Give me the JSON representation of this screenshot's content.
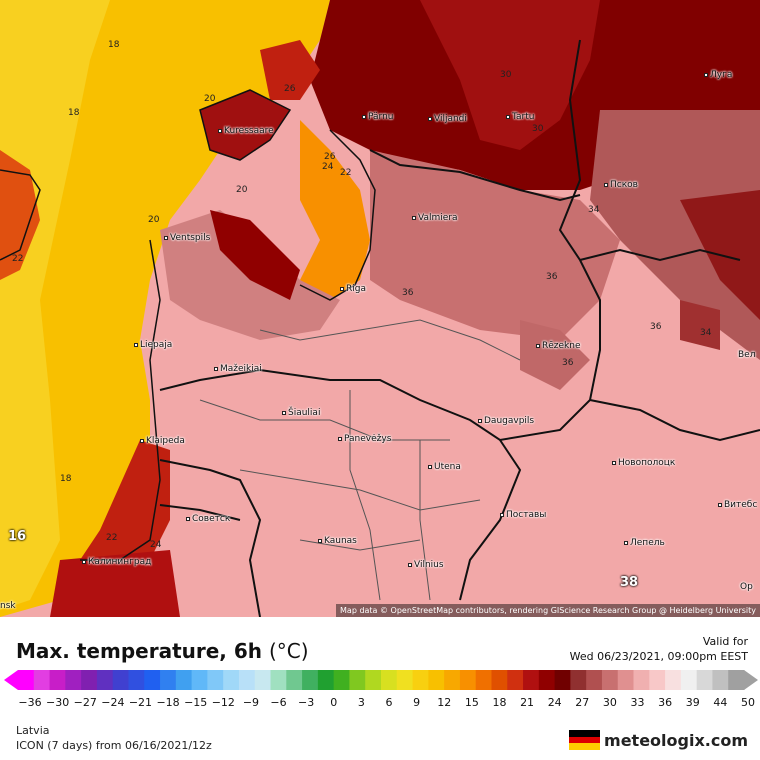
{
  "map": {
    "attribution": "Map data © OpenStreetMap contributors, rendering GIScience Research Group @ Heidelberg University",
    "cities": [
      {
        "name": "Pärnu"
      },
      {
        "name": "Viljandi"
      },
      {
        "name": "Tartu"
      },
      {
        "name": "Луга"
      },
      {
        "name": "Kuressaare"
      },
      {
        "name": "Псков"
      },
      {
        "name": "Valmiera"
      },
      {
        "name": "Ventspils"
      },
      {
        "name": "Riga"
      },
      {
        "name": "Liepaja"
      },
      {
        "name": "Rēzekne"
      },
      {
        "name": "Mažeikiai"
      },
      {
        "name": "Šiauliai"
      },
      {
        "name": "Panevėžys"
      },
      {
        "name": "Daugavpils"
      },
      {
        "name": "Klaipeda"
      },
      {
        "name": "Utena"
      },
      {
        "name": "Новополоцк"
      },
      {
        "name": "Советск"
      },
      {
        "name": "Поставы"
      },
      {
        "name": "Витебс"
      },
      {
        "name": "Kaunas"
      },
      {
        "name": "Лепель"
      },
      {
        "name": "Калининград"
      },
      {
        "name": "Vilnius"
      },
      {
        "name": "Вел"
      },
      {
        "name": "Ор"
      },
      {
        "name": "nsk"
      }
    ],
    "isotherm_labels": [
      "18",
      "18",
      "18",
      "20",
      "20",
      "20",
      "22",
      "22",
      "22",
      "24",
      "24",
      "26",
      "26",
      "30",
      "30",
      "34",
      "34",
      "36",
      "36",
      "36",
      "36",
      "16"
    ],
    "big_labels": [
      "16",
      "38"
    ]
  },
  "legend": {
    "title": "Max. temperature, 6h",
    "unit": "(°C)",
    "valid_label": "Valid for",
    "valid_date": "Wed 06/23/2021, 09:00pm EEST",
    "region": "Latvia",
    "model_run": "ICON (7 days) from 06/16/2021/12z",
    "brand": "meteologix.com",
    "ticks": [
      "−36",
      "−30",
      "−27",
      "−24",
      "−21",
      "−18",
      "−15",
      "−12",
      "−9",
      "−6",
      "−3",
      "0",
      "3",
      "6",
      "9",
      "12",
      "15",
      "18",
      "21",
      "24",
      "27",
      "30",
      "33",
      "36",
      "39",
      "44",
      "50"
    ],
    "colors": [
      "#ff00ff",
      "#e23ee2",
      "#c81ec8",
      "#a020c0",
      "#8020b0",
      "#6030c0",
      "#4040d0",
      "#3050e0",
      "#2060f0",
      "#3080f0",
      "#40a0f0",
      "#60b8f8",
      "#80c8f8",
      "#a0d8f8",
      "#b8e0f8",
      "#c8e8f0",
      "#a0e0c0",
      "#70c890",
      "#40b060",
      "#20a030",
      "#40b020",
      "#80c820",
      "#b0d820",
      "#d8e020",
      "#f0e020",
      "#f8d010",
      "#f8c000",
      "#f8a800",
      "#f89000",
      "#f07000",
      "#e05000",
      "#d03010",
      "#b01010",
      "#900000",
      "#700000",
      "#903030",
      "#b05050",
      "#c87070",
      "#e09090",
      "#f0b0b0",
      "#f8c8c8",
      "#f8e0e0",
      "#f0f0f0",
      "#d8d8d8",
      "#c0c0c0",
      "#a0a0a0"
    ],
    "flag_colors": [
      "#000000",
      "#dd0000",
      "#ffce00"
    ]
  }
}
